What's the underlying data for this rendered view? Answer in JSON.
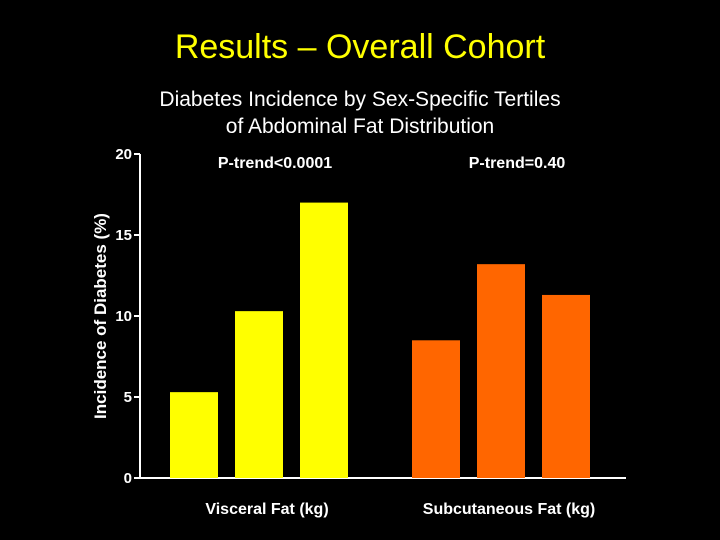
{
  "slide": {
    "title": "Results – Overall Cohort",
    "subtitle_line1": "Diabetes Incidence by Sex-Specific Tertiles",
    "subtitle_line2": "of Abdominal Fat Distribution"
  },
  "colors": {
    "background": "#000000",
    "title": "#FFFF00",
    "visceral": "#FFFF00",
    "subcutaneous": "#FF6600",
    "axis": "#FFFFFF"
  },
  "chart_data": {
    "type": "bar",
    "ylabel": "Incidence of Diabetes (%)",
    "ylim": [
      0,
      20
    ],
    "yticks": [
      0,
      5,
      10,
      15,
      20
    ],
    "groups": [
      {
        "name": "Visceral Fat (kg)",
        "annotation": "P-trend<0.0001",
        "color": "#FFFF00",
        "values": [
          5.3,
          10.3,
          17.0
        ]
      },
      {
        "name": "Subcutaneous Fat (kg)",
        "annotation": "P-trend=0.40",
        "color": "#FF6600",
        "values": [
          8.5,
          13.2,
          11.3
        ]
      }
    ]
  }
}
